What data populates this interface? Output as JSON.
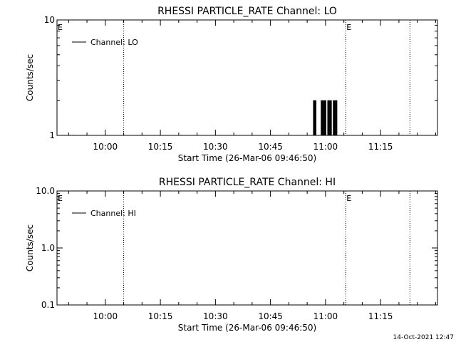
{
  "chart_data": [
    {
      "type": "line",
      "title": "RHESSI PARTICLE_RATE Channel: LO",
      "xlabel": "Start Time (26-Mar-06 09:46:50)",
      "ylabel": "Counts/sec",
      "yscale": "log",
      "ylim": [
        1,
        10
      ],
      "xlim": [
        "09:46:50",
        "11:30:30"
      ],
      "x_ticks": [
        "10:00",
        "10:15",
        "10:30",
        "10:45",
        "11:00",
        "11:15"
      ],
      "y_ticks": [
        "1",
        "10"
      ],
      "legend": "top-left",
      "grid": false,
      "series": [
        {
          "name": "Channel: LO",
          "color": "#000000",
          "x": [
            "10:56:30",
            "10:56:42",
            "10:56:48",
            "10:57:00",
            "10:57:06",
            "10:57:18",
            "10:57:24",
            "10:57:36",
            "10:58:36",
            "10:58:48",
            "10:58:54",
            "10:59:06",
            "10:59:12",
            "10:59:24",
            "10:59:30",
            "10:59:42",
            "10:59:48",
            "11:00:00",
            "11:00:06",
            "11:00:18",
            "11:00:24",
            "11:00:36",
            "11:00:42",
            "11:00:54",
            "11:01:00",
            "11:01:12",
            "11:01:18",
            "11:01:30",
            "11:01:36",
            "11:01:48",
            "11:01:54",
            "11:02:06",
            "11:02:12",
            "11:02:24",
            "11:02:30",
            "11:02:42",
            "11:02:48",
            "11:03:00",
            "11:03:06",
            "11:03:18"
          ],
          "y": [
            1,
            2,
            1,
            2,
            1,
            2,
            1,
            1,
            1,
            2,
            1,
            2,
            1,
            2,
            1,
            2,
            1,
            2,
            1,
            1,
            1,
            2,
            1,
            2,
            1,
            2,
            1,
            2,
            1,
            1,
            1,
            2,
            1,
            2,
            1,
            2,
            1,
            2,
            1,
            1
          ]
        }
      ],
      "markers": [
        {
          "type": "dotted-line",
          "x": "10:05:00"
        },
        {
          "type": "dotted-line",
          "x": "11:05:30",
          "label": "E"
        },
        {
          "type": "dotted-line",
          "x": "11:23:00"
        },
        {
          "type": "label",
          "x": "09:46:50",
          "label": "E"
        }
      ]
    },
    {
      "type": "line",
      "title": "RHESSI PARTICLE_RATE Channel: HI",
      "xlabel": "Start Time (26-Mar-06 09:46:50)",
      "ylabel": "Counts/sec",
      "yscale": "log",
      "ylim": [
        0.1,
        10.0
      ],
      "xlim": [
        "09:46:50",
        "11:30:30"
      ],
      "x_ticks": [
        "10:00",
        "10:15",
        "10:30",
        "10:45",
        "11:00",
        "11:15"
      ],
      "y_ticks": [
        "0.1",
        "1.0",
        "10.0"
      ],
      "legend": "top-left",
      "grid": false,
      "series": [
        {
          "name": "Channel: HI",
          "color": "#000000",
          "x": [],
          "y": []
        }
      ],
      "markers": [
        {
          "type": "dotted-line",
          "x": "10:05:00"
        },
        {
          "type": "dotted-line",
          "x": "11:05:30",
          "label": "E"
        },
        {
          "type": "dotted-line",
          "x": "11:23:00"
        },
        {
          "type": "label",
          "x": "09:46:50",
          "label": "E"
        }
      ]
    }
  ],
  "footer": {
    "timestamp": "14-Oct-2021 12:47"
  }
}
